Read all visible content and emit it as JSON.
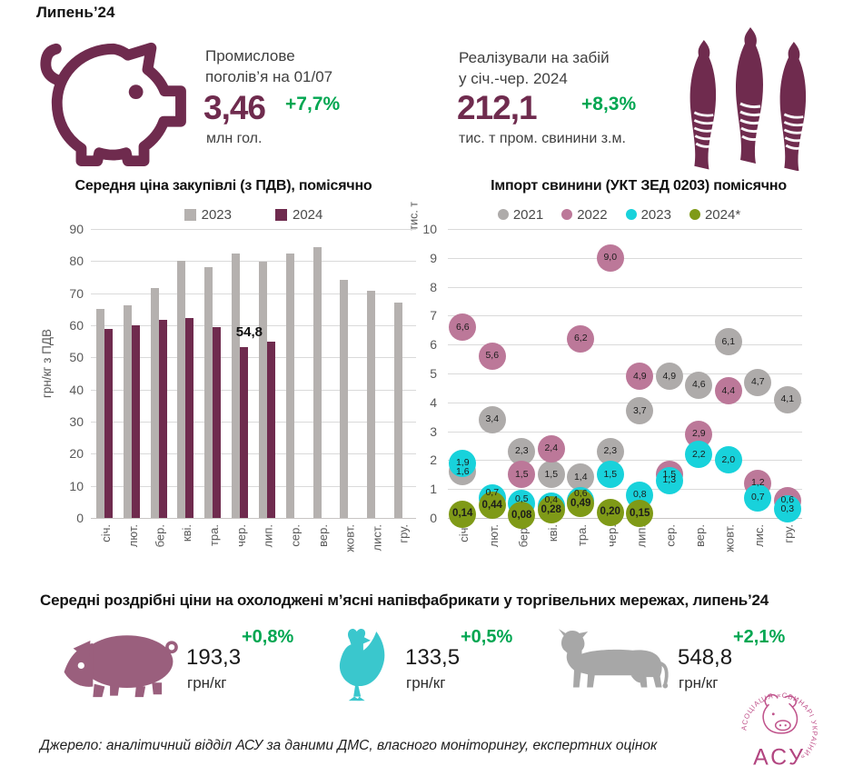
{
  "page": {
    "title": "Липень’24"
  },
  "kpis": {
    "herd": {
      "line1": "Промислове",
      "line2": "поголів’я на 01/07",
      "value": "3,46",
      "delta": "+7,7%",
      "unit": "млн гол."
    },
    "slaughter": {
      "line1": "Реалізували на забій",
      "line2": "у січ.-чер. 2024",
      "value": "212,1",
      "delta": "+8,3%",
      "unit": "тис. т пром. свинини з.м."
    }
  },
  "chart_data": [
    {
      "type": "bar",
      "title": "Середня ціна закупівлі (з ПДВ), помісячно",
      "ylabel": "грн/кг з ПДВ",
      "ylim": [
        0,
        90
      ],
      "ytick_step": 10,
      "grid": true,
      "legend_position": "top",
      "categories": [
        "січ.",
        "лют.",
        "бер.",
        "кві.",
        "тра.",
        "чер.",
        "лип.",
        "сер.",
        "вер.",
        "жовт.",
        "лист.",
        "гру."
      ],
      "series": [
        {
          "name": "2023",
          "color": "#b5b1af",
          "values": [
            65.2,
            66.3,
            71.5,
            80.0,
            78.1,
            82.5,
            79.8,
            82.3,
            84.2,
            74.2,
            70.8,
            67.2
          ]
        },
        {
          "name": "2024",
          "color": "#6f2b4e",
          "values": [
            59.0,
            60.1,
            61.7,
            62.4,
            59.3,
            53.3,
            54.8,
            null,
            null,
            null,
            null,
            null
          ]
        }
      ],
      "point_label": {
        "series": "2024",
        "index": 6,
        "text": "54,8"
      }
    },
    {
      "type": "scatter",
      "title": "Імпорт свинини (УКТ ЗЕД 0203) помісячно",
      "ylabel": "тис. т",
      "ylim": [
        0,
        10
      ],
      "ytick_step": 1,
      "grid": true,
      "legend_position": "top",
      "categories": [
        "січ.",
        "лют.",
        "бер.",
        "кві.",
        "тра.",
        "чер.",
        "лип.",
        "сер.",
        "вер.",
        "жовт.",
        "лис.",
        "гру."
      ],
      "series": [
        {
          "name": "2021",
          "color": "#aeabaa",
          "values": [
            1.6,
            3.4,
            2.3,
            1.5,
            1.4,
            2.3,
            3.7,
            4.9,
            4.6,
            6.1,
            4.7,
            4.1
          ],
          "labels": [
            "1,6",
            "3,4",
            "2,3",
            "1,5",
            "1,4",
            "2,3",
            "3,7",
            "4,9",
            "4,6",
            "6,1",
            "4,7",
            "4,1"
          ]
        },
        {
          "name": "2022",
          "color": "#bc7899",
          "values": [
            6.6,
            5.6,
            1.5,
            2.4,
            6.2,
            9.0,
            4.9,
            1.5,
            2.9,
            4.4,
            1.2,
            0.6
          ],
          "labels": [
            "6,6",
            "5,6",
            "1,5",
            "2,4",
            "6,2",
            "9,0",
            "4,9",
            "1,5",
            "2,9",
            "4,4",
            "1,2",
            "0,6"
          ]
        },
        {
          "name": "2023",
          "color": "#18d2db",
          "values": [
            1.9,
            0.7,
            0.5,
            0.4,
            0.6,
            1.5,
            0.8,
            1.3,
            2.2,
            2.0,
            0.7,
            0.3
          ],
          "labels": [
            "1,9",
            "0,7",
            "0,5",
            "0,4",
            "0,6",
            "1,5",
            "0,8",
            "1,3",
            "2,2",
            "2,0",
            "0,7",
            "0,3"
          ],
          "label_dy": [
            0,
            -5,
            -5,
            -7,
            -7,
            0,
            0,
            0,
            0,
            0,
            0,
            0
          ]
        },
        {
          "name": "2024*",
          "color": "#7f9a17",
          "labels_bold": true,
          "values": [
            0.14,
            0.44,
            0.08,
            0.28,
            0.49,
            0.2,
            0.15,
            null,
            null,
            null,
            null,
            null
          ],
          "labels": [
            "0,14",
            "0,44",
            "0,08",
            "0,28",
            "0,49",
            "0,20",
            "0,15"
          ]
        }
      ]
    }
  ],
  "retail": {
    "title": "Середні роздрібні ціни на охолоджені м’ясні напівфабрикати у торгівельних мережах, липень’24",
    "items": [
      {
        "name": "pork",
        "value": "193,3",
        "unit": "грн/кг",
        "delta": "+0,8%"
      },
      {
        "name": "chicken",
        "value": "133,5",
        "unit": "грн/кг",
        "delta": "+0,5%"
      },
      {
        "name": "beef",
        "value": "548,8",
        "unit": "грн/кг",
        "delta": "+2,1%"
      }
    ]
  },
  "footer": {
    "source": "Джерело: аналітичний відділ АСУ за даними ДМС, власного моніторингу, експертних оцінок",
    "logo": {
      "acronym": "АСУ",
      "ring_text": "АСОЦІАЦІЯ «СВИНАРІ УКРАЇНИ»"
    }
  },
  "colors": {
    "maroon": "#6f2b4e",
    "green": "#00a651",
    "pork_pink": "#9a5f7d",
    "chicken_cyan": "#3ac7cd",
    "beef_gray": "#a7a7a7",
    "logo_pink": "#c0548c"
  }
}
